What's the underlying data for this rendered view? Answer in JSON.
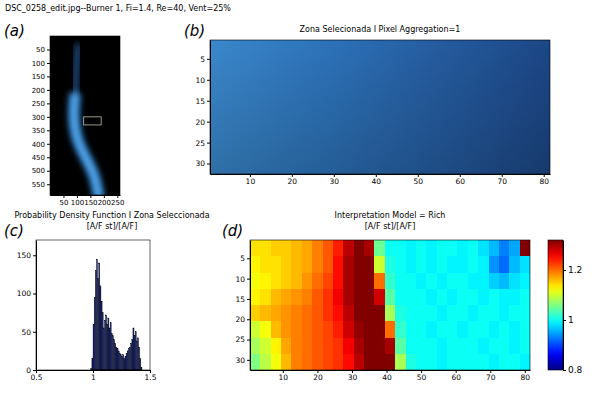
{
  "chart_data": [
    {
      "type": "image",
      "panel_label": "(a)",
      "title": "DSC_0258_edit.jpg--Burner 1, Fi=1.4, Re=40, Vent=25%",
      "xlim": [
        0,
        260
      ],
      "ylim": [
        0,
        590
      ],
      "xticks": [
        50,
        100,
        150,
        200,
        250
      ],
      "yticks": [
        50,
        100,
        150,
        200,
        250,
        300,
        350,
        400,
        450,
        500,
        550
      ],
      "selection": {
        "x": [
          125,
          190
        ],
        "y": [
          300,
          330
        ]
      }
    },
    {
      "type": "image",
      "panel_label": "(b)",
      "title": "Zona Selecionada I Pixel Aggregation=1",
      "xlim": [
        0.5,
        81.5
      ],
      "ylim": [
        0.5,
        32.5
      ],
      "xticks": [
        10,
        20,
        30,
        40,
        50,
        60,
        70,
        80
      ],
      "yticks": [
        5,
        10,
        15,
        20,
        25,
        30
      ]
    },
    {
      "type": "histogram",
      "panel_label": "(c)",
      "title": "Probability Density Function I Zona Seleccionada",
      "subtitle": "[A/F st]/[A/F]",
      "bins": [
        0.97,
        0.98,
        0.99,
        1,
        1.01,
        1.02,
        1.03,
        1.04,
        1.05,
        1.06,
        1.07,
        1.08,
        1.09,
        1.1,
        1.11,
        1.12,
        1.13,
        1.14,
        1.15,
        1.16,
        1.17,
        1.18,
        1.19,
        1.2,
        1.21,
        1.22,
        1.23,
        1.24,
        1.25,
        1.26,
        1.27,
        1.28,
        1.29,
        1.3,
        1.31,
        1.32,
        1.33,
        1.34,
        1.35,
        1.36,
        1.37,
        1.38,
        1.39,
        1.4,
        1.41,
        1.42,
        1.43
      ],
      "counts": [
        0,
        2,
        15,
        60,
        95,
        130,
        145,
        120,
        140,
        110,
        90,
        75,
        55,
        65,
        72,
        60,
        68,
        55,
        62,
        48,
        45,
        40,
        35,
        30,
        28,
        25,
        22,
        20,
        18,
        20,
        15,
        18,
        22,
        25,
        28,
        30,
        35,
        40,
        55,
        45,
        50,
        38,
        42,
        30,
        15,
        3
      ],
      "color": "#16226e",
      "xlim": [
        0.5,
        1.5
      ],
      "xticks": [
        0.5,
        1,
        1.5
      ],
      "ylim": [
        0,
        170
      ],
      "yticks": [
        0,
        50,
        100,
        150
      ]
    },
    {
      "type": "heatmap",
      "panel_label": "(d)",
      "title": "Interpretation Model = Rich",
      "subtitle": "[A/F st]/[A/F]",
      "x": [
        2,
        5,
        8,
        11,
        14,
        17,
        20,
        23,
        26,
        29,
        32,
        35,
        38,
        41,
        44,
        47,
        50,
        53,
        56,
        59,
        62,
        65,
        68,
        71,
        74,
        77,
        80
      ],
      "y": [
        2.5,
        6.5,
        10.5,
        14.5,
        18.5,
        22.5,
        26.5,
        30.5
      ],
      "z": [
        [
          1.14,
          1.14,
          1.15,
          1.15,
          1.16,
          1.17,
          1.19,
          1.21,
          1.24,
          1.29,
          1.33,
          1.3,
          1.05,
          1.0,
          1.0,
          0.99,
          1.0,
          0.99,
          1.0,
          1.0,
          0.99,
          1.0,
          0.98,
          0.96,
          0.93,
          0.95,
          1.4
        ],
        [
          1.13,
          1.14,
          1.14,
          1.15,
          1.16,
          1.17,
          1.19,
          1.21,
          1.25,
          1.3,
          1.34,
          1.32,
          1.1,
          1.01,
          1.0,
          0.99,
          1.0,
          0.99,
          1.0,
          0.99,
          0.99,
          1.0,
          0.99,
          0.94,
          0.92,
          0.96,
          0.98
        ],
        [
          1.12,
          1.13,
          1.14,
          1.15,
          1.16,
          1.18,
          1.2,
          1.22,
          1.25,
          1.3,
          1.34,
          1.33,
          1.2,
          1.02,
          1.0,
          1.0,
          0.99,
          1.0,
          0.99,
          1.0,
          1.0,
          0.99,
          0.99,
          0.97,
          0.96,
          0.98,
          0.99
        ],
        [
          1.13,
          1.14,
          1.16,
          1.17,
          1.18,
          1.19,
          1.21,
          1.23,
          1.26,
          1.3,
          1.34,
          1.34,
          1.28,
          1.04,
          1.0,
          1.0,
          1.0,
          0.99,
          1.0,
          0.99,
          1.0,
          1.0,
          0.99,
          1.0,
          0.99,
          0.99,
          1.0
        ],
        [
          1.15,
          1.16,
          1.17,
          1.18,
          1.19,
          1.2,
          1.21,
          1.23,
          1.25,
          1.29,
          1.33,
          1.35,
          1.32,
          1.08,
          1.01,
          1.0,
          1.0,
          1.0,
          0.99,
          1.0,
          1.0,
          0.99,
          1.0,
          1.0,
          0.99,
          1.0,
          1.0
        ],
        [
          1.1,
          1.12,
          1.16,
          1.18,
          1.19,
          1.2,
          1.21,
          1.22,
          1.24,
          1.28,
          1.31,
          1.35,
          1.34,
          1.2,
          1.02,
          1.0,
          1.0,
          0.99,
          1.0,
          1.0,
          0.99,
          1.0,
          1.0,
          0.99,
          1.0,
          0.99,
          1.0
        ],
        [
          1.08,
          1.1,
          1.13,
          1.17,
          1.19,
          1.2,
          1.21,
          1.22,
          1.23,
          1.26,
          1.3,
          1.34,
          1.36,
          1.3,
          1.04,
          1.0,
          1.0,
          1.0,
          0.99,
          1.0,
          1.0,
          1.0,
          0.99,
          1.0,
          1.0,
          0.99,
          1.0
        ],
        [
          1.06,
          1.09,
          1.12,
          1.16,
          1.19,
          1.2,
          1.21,
          1.22,
          1.23,
          1.25,
          1.29,
          1.33,
          1.36,
          1.33,
          1.08,
          1.01,
          1.0,
          1.0,
          0.99,
          1.0,
          1.0,
          1.0,
          1.0,
          0.99,
          1.0,
          1.0,
          0.99
        ]
      ],
      "xlim": [
        0.5,
        81.5
      ],
      "ylim": [
        0.5,
        32.5
      ],
      "xticks": [
        10,
        20,
        30,
        40,
        50,
        60,
        70,
        80
      ],
      "yticks": [
        5,
        10,
        15,
        20,
        25,
        30
      ],
      "clim": [
        0.8,
        1.32
      ],
      "cticks": [
        0.8,
        1,
        1.2
      ]
    }
  ]
}
